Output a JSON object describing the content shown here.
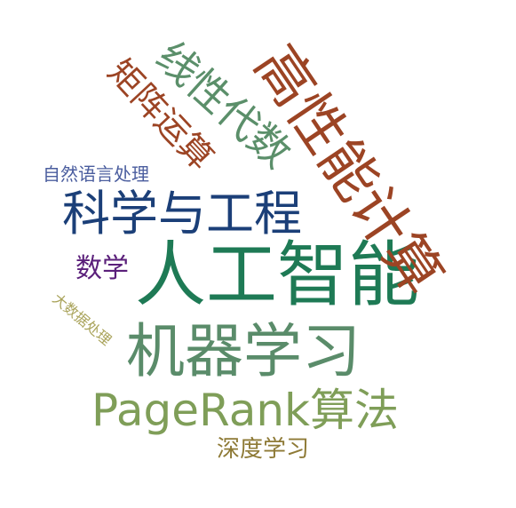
{
  "cloud": {
    "words": {
      "rengong": {
        "text": "人工智能",
        "color": "#1e7a55"
      },
      "gaoxingneng": {
        "text": "高性能计算",
        "color": "#9c4424"
      },
      "jiqixuexi": {
        "text": "机器学习",
        "color": "#5a8c6a"
      },
      "kexue": {
        "text": "科学与工程",
        "color": "#1b3f78"
      },
      "pagerank": {
        "text": "PageRank算法",
        "color": "#7f9e58"
      },
      "xianxing": {
        "text": "线性代数",
        "color": "#5b8f6a"
      },
      "juzhen": {
        "text": "矩阵运算",
        "color": "#9c4424"
      },
      "shuxue": {
        "text": "数学",
        "color": "#5a1f7a"
      },
      "shendu": {
        "text": "深度学习",
        "color": "#8e7a36"
      },
      "ziran": {
        "text": "自然语言处理",
        "color": "#4a5d9e"
      },
      "dashuju": {
        "text": "大数据处理",
        "color": "#a9a35a"
      }
    }
  }
}
